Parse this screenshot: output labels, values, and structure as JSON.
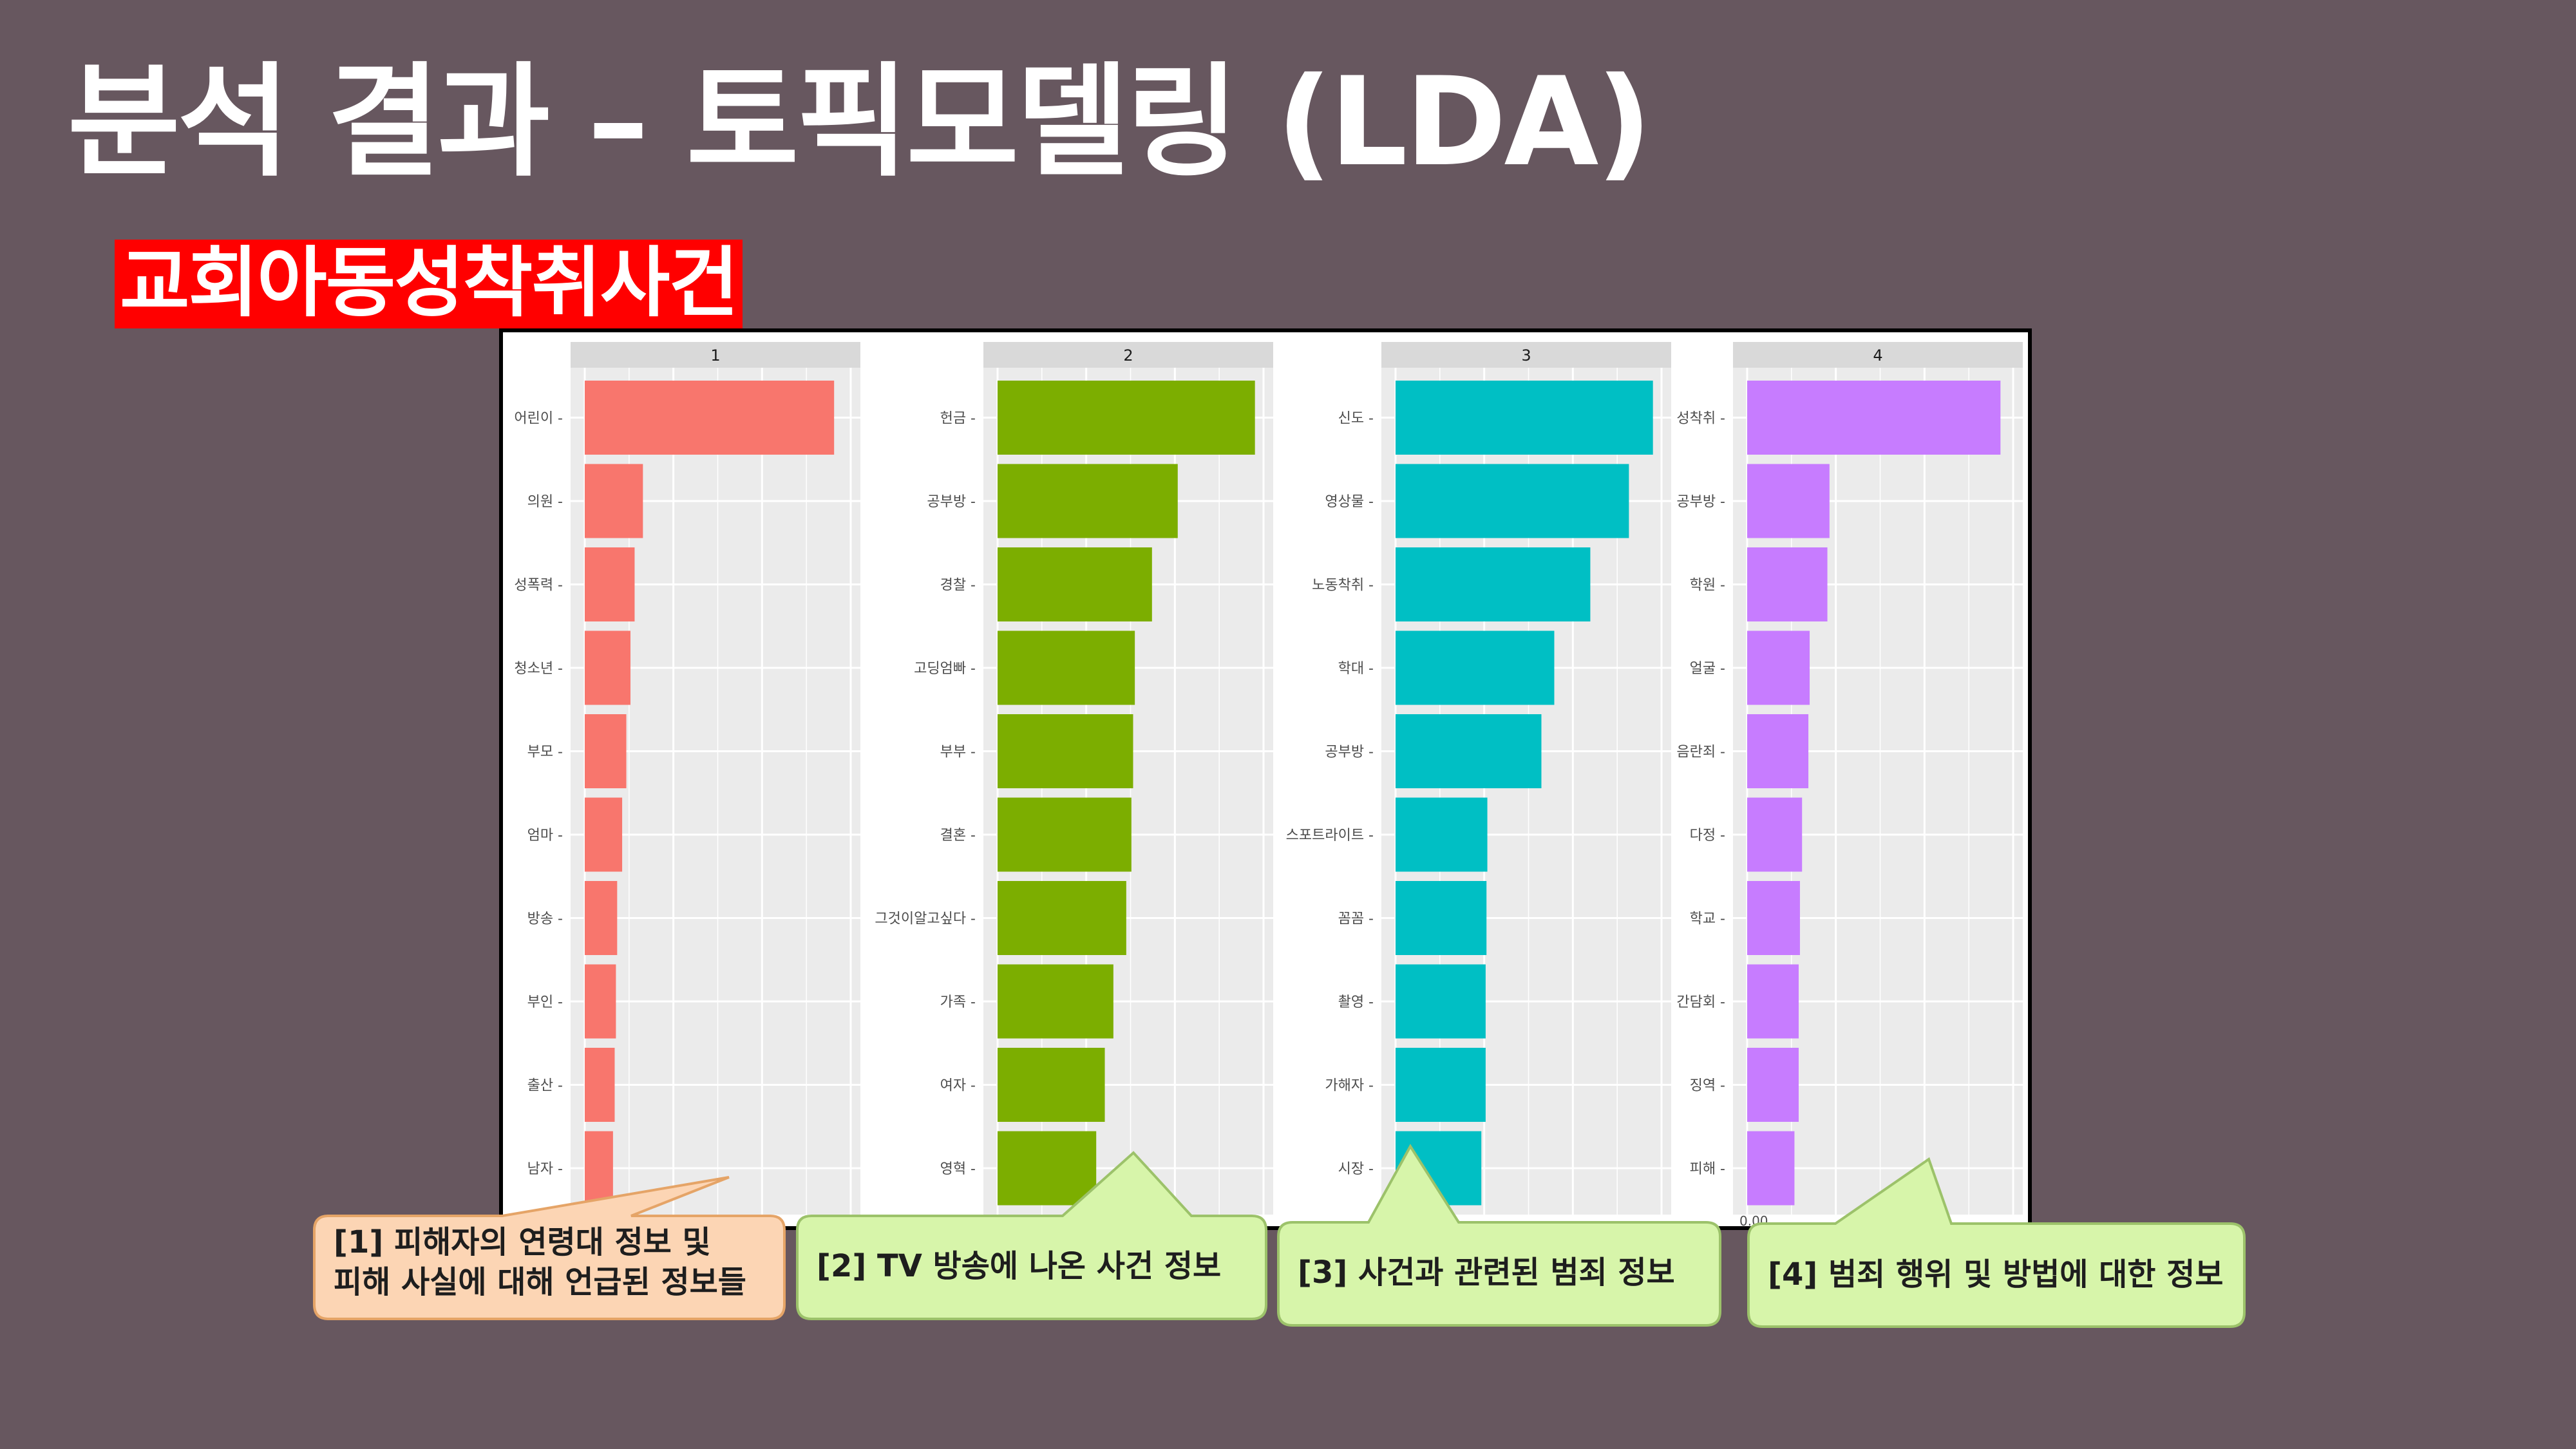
{
  "slide": {
    "title": "분석 결과 – 토픽모델링 (LDA)",
    "subtitle": "교회아동성착취사건"
  },
  "chart_data": {
    "type": "bar",
    "orientation": "horizontal",
    "grid": true,
    "facets": [
      {
        "label": "1",
        "color": "#f8766d",
        "terms": [
          "어린이",
          "의원",
          "성폭력",
          "청소년",
          "부모",
          "엄마",
          "방송",
          "부인",
          "출산",
          "남자"
        ],
        "values": [
          0.06,
          0.014,
          0.012,
          0.011,
          0.01,
          0.009,
          0.0078,
          0.0075,
          0.0072,
          0.0068
        ],
        "xlim": [
          0,
          0.064
        ]
      },
      {
        "label": "2",
        "color": "#7cae00",
        "terms": [
          "헌금",
          "공부방",
          "경찰",
          "고딩엄빠",
          "부부",
          "결혼",
          "그것이알고싶다",
          "가족",
          "여자",
          "영혁"
        ],
        "values": [
          0.03,
          0.021,
          0.018,
          0.016,
          0.0158,
          0.0156,
          0.015,
          0.0135,
          0.0125,
          0.0115
        ],
        "xlim": [
          0,
          0.031
        ]
      },
      {
        "label": "3",
        "color": "#00bfc4",
        "terms": [
          "신도",
          "영상물",
          "노동착취",
          "학대",
          "공부방",
          "스포트라이트",
          "꼼꼼",
          "촬영",
          "가해자",
          "시장"
        ],
        "values": [
          0.03,
          0.0272,
          0.0227,
          0.0185,
          0.017,
          0.0107,
          0.0106,
          0.0105,
          0.0105,
          0.01
        ],
        "xlim": [
          0,
          0.031
        ]
      },
      {
        "label": "4",
        "color": "#c77cff",
        "terms": [
          "성착취",
          "공부방",
          "학원",
          "얼굴",
          "음란죄",
          "다정",
          "학교",
          "간담회",
          "징역",
          "피해"
        ],
        "values": [
          0.06,
          0.0195,
          0.019,
          0.0148,
          0.0145,
          0.013,
          0.0125,
          0.0122,
          0.0122,
          0.0112
        ],
        "xlim": [
          0,
          0.063
        ],
        "first_tick_label": "0.00"
      }
    ]
  },
  "callouts": [
    {
      "lines": [
        "[1] 피해자의 연령대 정보 및",
        "피해 사실에 대해 언급된 정보들"
      ],
      "fill": "#fcd5b4",
      "stroke": "#e5a467"
    },
    {
      "lines": [
        "[2] TV 방송에 나온 사건 정보"
      ],
      "fill": "#d7f5aa",
      "stroke": "#9cc26a"
    },
    {
      "lines": [
        "[3] 사건과 관련된 범죄 정보"
      ],
      "fill": "#d7f5aa",
      "stroke": "#9cc26a"
    },
    {
      "lines": [
        "[4] 범죄 행위 및 방법에 대한 정보"
      ],
      "fill": "#d7f5aa",
      "stroke": "#9cc26a"
    }
  ]
}
